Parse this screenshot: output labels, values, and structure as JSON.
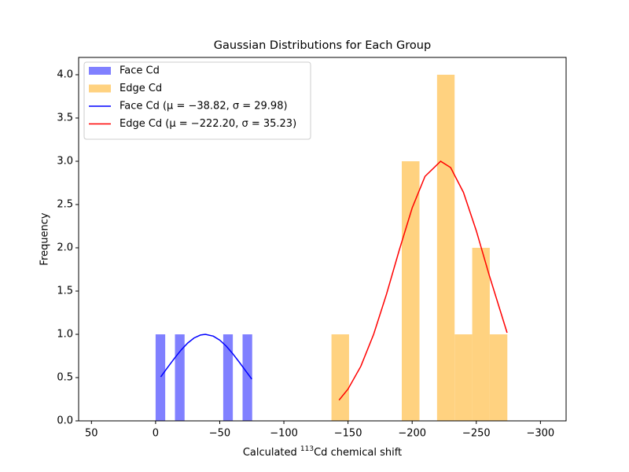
{
  "chart_data": {
    "type": "histogram",
    "title": "Gaussian Distributions for Each Group",
    "xlabel": {
      "prefix": "Calculated ",
      "sup": "113",
      "suffix": "Cd chemical shift"
    },
    "ylabel": "Frequency",
    "xlim": [
      60,
      -320
    ],
    "ylim": [
      0,
      4.2
    ],
    "xticks": [
      50,
      0,
      {
        "value": -50,
        "label": "−50"
      },
      {
        "value": -100,
        "label": "−100"
      },
      {
        "value": -150,
        "label": "−150"
      },
      {
        "value": -200,
        "label": "−200"
      },
      {
        "value": -250,
        "label": "−250"
      },
      {
        "value": -300,
        "label": "−300"
      }
    ],
    "yticks": [
      {
        "value": 0,
        "label": "0.0"
      },
      0.5,
      {
        "value": 1,
        "label": "1.0"
      },
      1.5,
      {
        "value": 2,
        "label": "2.0"
      },
      2.5,
      {
        "value": 3,
        "label": "3.0"
      },
      3.5,
      {
        "value": 4,
        "label": "4.0"
      }
    ],
    "legend": "upper left",
    "series": [
      {
        "name": "Face Cd",
        "type": "histogram",
        "color": "#8080ff",
        "bins": [
          0,
          -7.5,
          -15.1,
          -22.6,
          -30.1,
          -37.7,
          -45.2,
          -52.7,
          -60.2,
          -67.8,
          -75.3
        ],
        "values": [
          1,
          0,
          1,
          0,
          0,
          0,
          0,
          1,
          0,
          1
        ]
      },
      {
        "name": "Edge Cd",
        "type": "histogram",
        "color": "#ffd280",
        "bins": [
          -137.1,
          -150.8,
          -164.5,
          -178.2,
          -191.9,
          -205.7,
          -219.4,
          -233.1,
          -246.8,
          -260.5,
          -274.2
        ],
        "values": [
          1,
          0,
          0,
          0,
          3,
          0,
          4,
          1,
          2,
          1
        ]
      },
      {
        "name": "Face Cd (μ = −38.82, σ = 29.98)",
        "type": "line",
        "color": "#0000ff",
        "x": [
          -4,
          -10,
          -15,
          -20,
          -25,
          -30,
          -35,
          -38.82,
          -45,
          -50,
          -55,
          -60,
          -65,
          -70,
          -75
        ],
        "values": [
          0.509,
          0.63,
          0.729,
          0.821,
          0.899,
          0.958,
          0.992,
          1,
          0.979,
          0.933,
          0.865,
          0.779,
          0.683,
          0.582,
          0.483
        ]
      },
      {
        "name": "Edge Cd (μ = −222.20, σ = 35.23)",
        "type": "line",
        "color": "#ff0000",
        "x": [
          -143,
          -150,
          -160,
          -170,
          -180,
          -190,
          -200,
          -210,
          -222.2,
          -230,
          -240,
          -250,
          -260,
          -274
        ],
        "values": [
          0.24,
          0.367,
          0.631,
          1.001,
          1.464,
          1.976,
          2.46,
          2.825,
          3,
          2.927,
          2.64,
          2.197,
          1.687,
          1.018
        ]
      }
    ]
  }
}
